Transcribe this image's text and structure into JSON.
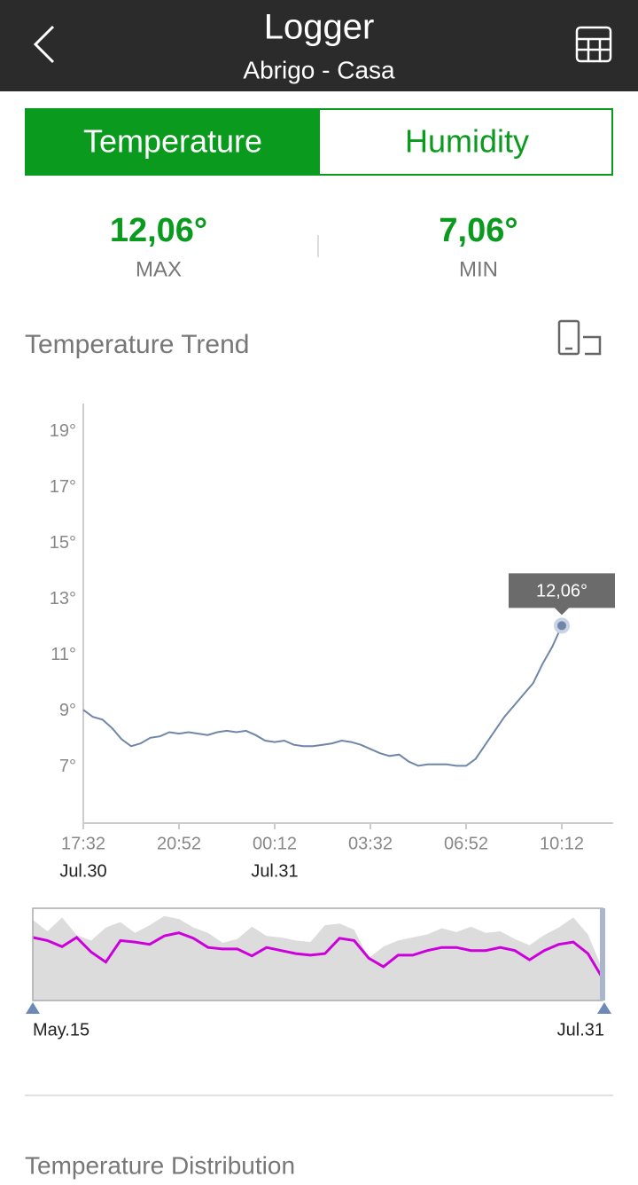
{
  "header": {
    "title": "Logger",
    "subtitle": "Abrigo - Casa"
  },
  "tabs": [
    {
      "label": "Temperature",
      "active": true
    },
    {
      "label": "Humidity",
      "active": false
    }
  ],
  "stats": [
    {
      "value": "12,06°",
      "label": "MAX"
    },
    {
      "value": "7,06°",
      "label": "MIN"
    }
  ],
  "sections": {
    "trend": "Temperature Trend",
    "distribution": "Temperature Distribution"
  },
  "chart_data": [
    {
      "type": "line",
      "color": "#6f86a8",
      "grid": false,
      "categories": [
        "17:32",
        null,
        null,
        null,
        null,
        null,
        null,
        null,
        null,
        null,
        "20:52",
        null,
        null,
        null,
        null,
        null,
        null,
        null,
        null,
        null,
        "00:12",
        null,
        null,
        null,
        null,
        null,
        null,
        null,
        null,
        null,
        "03:32",
        null,
        null,
        null,
        null,
        null,
        null,
        null,
        null,
        null,
        "06:52",
        null,
        null,
        null,
        null,
        null,
        null,
        null,
        null,
        null,
        "10:12"
      ],
      "date_labels": [
        "Jul.30",
        null,
        null,
        null,
        null,
        null,
        null,
        null,
        null,
        null,
        null,
        null,
        null,
        null,
        null,
        null,
        null,
        null,
        null,
        null,
        "Jul.31",
        null,
        null,
        null,
        null,
        null,
        null,
        null,
        null,
        null,
        null,
        null,
        null,
        null,
        null,
        null,
        null,
        null,
        null,
        null,
        null,
        null,
        null,
        null,
        null,
        null,
        null,
        null,
        null,
        null,
        null
      ],
      "values": [
        9.05,
        8.8,
        8.7,
        8.4,
        8.0,
        7.75,
        7.85,
        8.05,
        8.1,
        8.25,
        8.2,
        8.25,
        8.2,
        8.15,
        8.25,
        8.3,
        8.25,
        8.3,
        8.15,
        7.95,
        7.9,
        7.95,
        7.8,
        7.75,
        7.75,
        7.8,
        7.85,
        7.95,
        7.9,
        7.8,
        7.65,
        7.5,
        7.4,
        7.45,
        7.2,
        7.05,
        7.1,
        7.1,
        7.1,
        7.05,
        7.05,
        7.3,
        7.8,
        8.3,
        8.8,
        9.2,
        9.6,
        10.0,
        10.7,
        11.3,
        12.06
      ],
      "value_labels": [
        null,
        null,
        null,
        null,
        null,
        null,
        null,
        null,
        null,
        null,
        null,
        null,
        null,
        null,
        null,
        null,
        null,
        null,
        null,
        null,
        null,
        null,
        null,
        null,
        null,
        null,
        null,
        null,
        null,
        null,
        null,
        null,
        null,
        null,
        null,
        null,
        null,
        null,
        null,
        null,
        null,
        null,
        null,
        null,
        null,
        null,
        null,
        null,
        null,
        null,
        "12,06°"
      ],
      "ylim": [
        5,
        20
      ],
      "yticks": [
        {
          "value": 7,
          "label": "7°"
        },
        {
          "value": 9,
          "label": "9°"
        },
        {
          "value": 11,
          "label": "11°"
        },
        {
          "value": 13,
          "label": "13°"
        },
        {
          "value": 15,
          "label": "15°"
        },
        {
          "value": 17,
          "label": "17°"
        },
        {
          "value": 19,
          "label": "19°"
        }
      ]
    },
    {
      "type": "area",
      "categories": [
        "May.15",
        null,
        null,
        null,
        null,
        null,
        null,
        null,
        null,
        null,
        null,
        null,
        null,
        null,
        null,
        null,
        null,
        null,
        null,
        null,
        null,
        null,
        null,
        null,
        null,
        null,
        null,
        null,
        null,
        null,
        null,
        null,
        null,
        null,
        null,
        null,
        null,
        null,
        null,
        "Jul.31"
      ],
      "ylim": [
        4,
        16
      ],
      "series": [
        {
          "style": "area",
          "color": "#dcdcdc",
          "values": [
            14.5,
            13.0,
            14.8,
            12.5,
            11.8,
            13.5,
            14.2,
            12.8,
            13.8,
            15.0,
            14.6,
            13.5,
            12.8,
            11.5,
            12.0,
            13.6,
            12.4,
            12.2,
            11.8,
            11.6,
            13.8,
            14.0,
            13.2,
            9.5,
            11.0,
            11.8,
            12.2,
            12.6,
            13.4,
            12.9,
            13.6,
            12.8,
            13.0,
            12.0,
            11.2,
            12.5,
            13.5,
            14.8,
            12.6,
            8.0
          ]
        },
        {
          "style": "line",
          "color": "#cc00dd",
          "values": [
            12.2,
            11.8,
            11.0,
            12.2,
            10.3,
            9.0,
            11.8,
            11.6,
            11.3,
            12.4,
            12.8,
            12.1,
            10.9,
            10.7,
            10.7,
            9.8,
            10.9,
            10.5,
            10.1,
            9.9,
            10.1,
            12.1,
            11.8,
            9.5,
            8.4,
            9.9,
            9.9,
            10.5,
            10.9,
            10.9,
            10.5,
            10.5,
            10.9,
            10.5,
            9.3,
            10.5,
            11.3,
            11.6,
            10.1,
            6.9
          ]
        }
      ]
    }
  ]
}
